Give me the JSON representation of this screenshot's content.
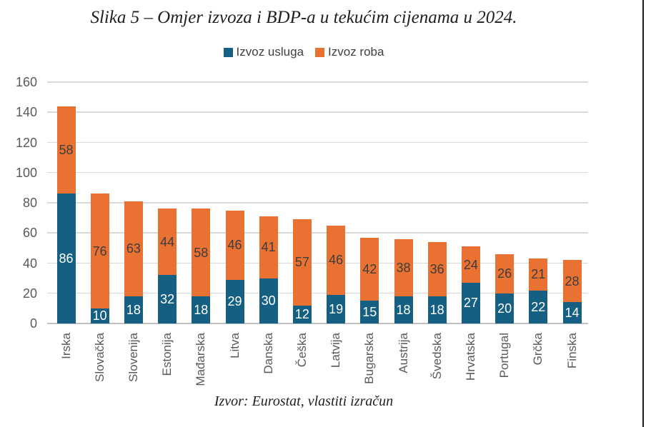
{
  "colors": {
    "services": "#156082",
    "goods": "#E97132",
    "gridline": "#D9D9D9",
    "axis_line": "#BFBFBF",
    "axis_text": "#595959",
    "label_on_blue": "#FFFFFF",
    "label_on_orange": "#3D3D3D",
    "legend_text": "#404040",
    "page_edge": "#1C1C1C"
  },
  "chart_data": {
    "type": "bar",
    "stacked": true,
    "title": "Slika 5 – Omjer izvoza i BDP-a u tekućim cijenama u 2024.",
    "source": "Izvor: Eurostat, vlastiti izračun",
    "categories": [
      "Irska",
      "Slovačka",
      "Slovenija",
      "Estonija",
      "Mađarska",
      "Litva",
      "Danska",
      "Češka",
      "Latvija",
      "Bugarska",
      "Austrija",
      "Švedska",
      "Hrvatska",
      "Portugal",
      "Grčka",
      "Finska"
    ],
    "series": [
      {
        "name": "Izvoz usluga",
        "color": "#156082",
        "values": [
          86,
          10,
          18,
          32,
          18,
          29,
          30,
          12,
          19,
          15,
          18,
          18,
          27,
          20,
          22,
          14
        ]
      },
      {
        "name": "Izvoz roba",
        "color": "#E97132",
        "values": [
          58,
          76,
          63,
          44,
          58,
          46,
          41,
          57,
          46,
          42,
          38,
          36,
          24,
          26,
          21,
          28
        ]
      }
    ],
    "totals": [
      144,
      86,
      81,
      76,
      76,
      75,
      71,
      69,
      65,
      57,
      56,
      54,
      51,
      46,
      43,
      42
    ],
    "xlabel": "",
    "ylabel": "",
    "ylim": [
      0,
      160
    ],
    "ytick_step": 20,
    "yticks": [
      0,
      20,
      40,
      60,
      80,
      100,
      120,
      140,
      160
    ],
    "grid": true,
    "legend_position": "top",
    "value_labels": "inside-center"
  }
}
